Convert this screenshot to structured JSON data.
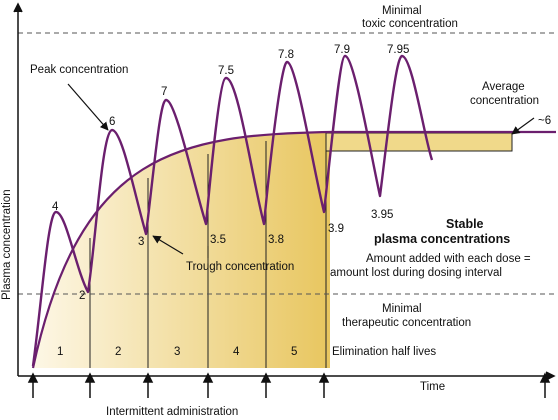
{
  "labels": {
    "y_axis": "Plasma concentration",
    "x_axis": "Time",
    "toxic_line": [
      "Minimal",
      "toxic concentration"
    ],
    "therapeutic_line": [
      "Minimal",
      "therapeutic concentration"
    ],
    "peak": "Peak concentration",
    "trough": "Trough concentration",
    "average": [
      "Average",
      "concentration"
    ],
    "average_value": "~6",
    "stable": [
      "Stable",
      "plasma concentrations"
    ],
    "amount": [
      "Amount added with each dose =",
      "amount lost during dosing interval"
    ],
    "elimination": "Elimination half lives",
    "intermittent": "Intermittent administration"
  },
  "half_lives": [
    "1",
    "2",
    "3",
    "4",
    "5"
  ],
  "peaks": [
    "4",
    "6",
    "7",
    "7.5",
    "7.8",
    "7.9",
    "7.95"
  ],
  "troughs": [
    "2",
    "3",
    "3.5",
    "3.8",
    "3.9",
    "3.95"
  ],
  "colors": {
    "curve": "#6b1f6e",
    "fill_light": "#fbf3dc",
    "fill_dark": "#e9c96a",
    "bar": "#f0d98a",
    "dashed": "#555555"
  }
}
